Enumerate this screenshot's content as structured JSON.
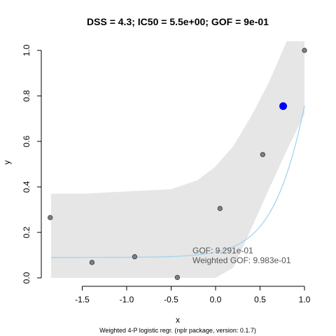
{
  "chart_data": {
    "type": "scatter",
    "title": "DSS = 4.3; IC50 = 5.5e+00; GOF = 9e-01",
    "xlabel": "x",
    "ylabel": "y",
    "caption": "Weighted 4-P logistic regr. (nplr package, version: 0.1.7)",
    "xlim": [
      -1.85,
      1.0
    ],
    "ylim": [
      0.0,
      1.0
    ],
    "x_ticks": [
      -1.5,
      -1.0,
      -0.5,
      0.0,
      0.5,
      1.0
    ],
    "x_tick_labels": [
      "-1.5",
      "-1.0",
      "-0.5",
      "0.0",
      "0.5",
      "1.0"
    ],
    "y_ticks": [
      0.0,
      0.2,
      0.4,
      0.6,
      0.8,
      1.0
    ],
    "y_tick_labels": [
      "0.0",
      "0.2",
      "0.4",
      "0.6",
      "0.8",
      "1.0"
    ],
    "points": [
      {
        "x": -1.86,
        "y": 0.265
      },
      {
        "x": -1.39,
        "y": 0.068
      },
      {
        "x": -0.91,
        "y": 0.093
      },
      {
        "x": -0.43,
        "y": 0.002
      },
      {
        "x": 0.05,
        "y": 0.305
      },
      {
        "x": 0.53,
        "y": 0.542
      },
      {
        "x": 1.0,
        "y": 1.0
      }
    ],
    "highlight_point": {
      "x": 0.76,
      "y": 0.755
    },
    "fitted_curve": {
      "bottom": 0.09,
      "top": 3.1,
      "xmid": 1.35,
      "scal": 1.56,
      "s": 1.0
    },
    "confidence_band": {
      "x": [
        -1.85,
        -1.5,
        -1.0,
        -0.5,
        -0.2,
        0.0,
        0.2,
        0.4,
        0.6,
        0.8,
        1.0
      ],
      "lower": [
        0.0,
        0.0,
        0.0,
        0.0,
        0.0,
        0.0,
        0.045,
        0.215,
        0.39,
        0.56,
        0.72
      ],
      "upper": [
        0.37,
        0.37,
        0.38,
        0.39,
        0.43,
        0.49,
        0.58,
        0.71,
        0.86,
        1.04,
        1.04
      ]
    },
    "annotations": [
      "GOF: 9.291e-01",
      "Weighted GOF: 9.983e-01"
    ],
    "colors": {
      "band": "#e6e6e6",
      "curve": "#9fd0f0",
      "points": "#808080",
      "highlight": "#0000ff",
      "annotation": "#555555"
    }
  }
}
